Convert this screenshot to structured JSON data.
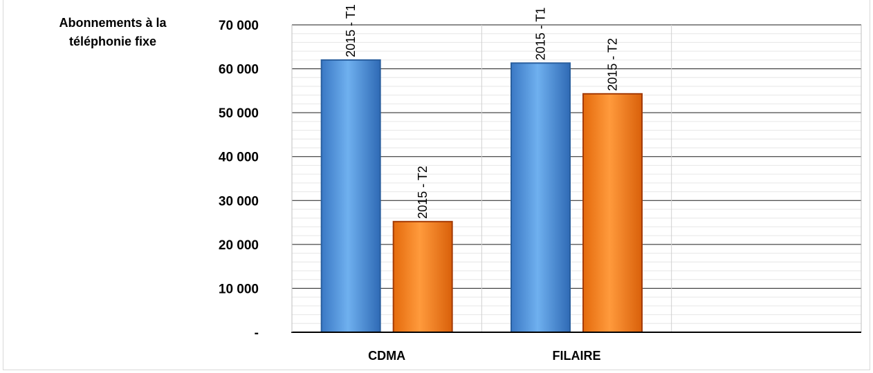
{
  "chart_data": {
    "type": "bar",
    "ylabel": "Abonnements à la téléphonie fixe",
    "categories": [
      "CDMA",
      "FILAIRE",
      ""
    ],
    "series": [
      {
        "name": "2015 - T1",
        "values": [
          62000,
          61300,
          null
        ],
        "color": "#4f94dc"
      },
      {
        "name": "2015 - T2",
        "values": [
          25200,
          54300,
          null
        ],
        "color": "#f5801e"
      }
    ],
    "ylim": [
      0,
      70000
    ],
    "yticks": [
      0,
      10000,
      20000,
      30000,
      40000,
      50000,
      60000,
      70000
    ],
    "ytick_labels": [
      "-",
      "10 000",
      "20 000",
      "30 000",
      "40 000",
      "50 000",
      "60 000",
      "70 000"
    ],
    "data_labels": true,
    "grid": true,
    "legend": "none"
  }
}
